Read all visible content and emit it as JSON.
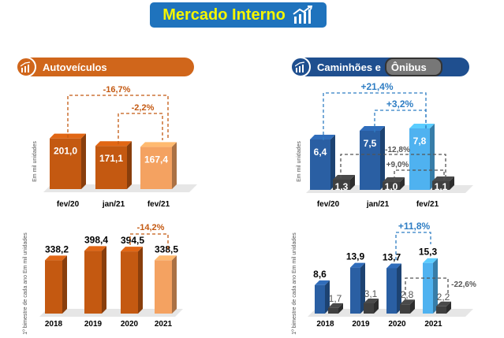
{
  "header": {
    "title": "Mercado Interno"
  },
  "panels": {
    "autoveiculos": {
      "title": "Autoveículos"
    },
    "caminhoes": {
      "title_part1": "Caminhões e",
      "title_part2": "Ônibus"
    }
  },
  "colors": {
    "orange_dark": "#c45911",
    "orange_light": "#f4a261",
    "blue_dark": "#2a5fa3",
    "blue_light": "#4fb2f0",
    "gray": "#404040",
    "pill_orange": "#d0661b",
    "pill_blue": "#1f4f8f"
  },
  "chart_data": [
    {
      "id": "auto_top",
      "type": "bar",
      "ylabel": "Em mil unidades",
      "categories": [
        "fev/20",
        "jan/21",
        "fev/21"
      ],
      "series": [
        {
          "values": [
            201.0,
            171.1,
            167.4
          ],
          "labels": [
            "201,0",
            "171,1",
            "167,4"
          ]
        }
      ],
      "annotations": [
        "-16,7%",
        "-2,2%"
      ]
    },
    {
      "id": "auto_bottom",
      "type": "bar",
      "ylabel": "1º bimestre de cada ano Em mil unidades",
      "categories": [
        "2018",
        "2019",
        "2020",
        "2021"
      ],
      "series": [
        {
          "values": [
            338.2,
            398.4,
            394.5,
            338.5
          ],
          "labels": [
            "338,2",
            "398,4",
            "394,5",
            "338,5"
          ]
        }
      ],
      "annotations": [
        "-14,2%"
      ]
    },
    {
      "id": "cam_top",
      "type": "bar",
      "ylabel": "Em mil unidades",
      "categories": [
        "fev/20",
        "jan/21",
        "fev/21"
      ],
      "series": [
        {
          "values": [
            6.4,
            7.5,
            7.8
          ],
          "labels": [
            "6,4",
            "7,5",
            "7,8"
          ]
        },
        {
          "values": [
            1.3,
            1.0,
            1.1
          ],
          "labels": [
            "1,3",
            "1,0",
            "1,1"
          ]
        }
      ],
      "annotations": [
        "+21,4%",
        "+3,2%",
        "-12,8%",
        "+9,0%"
      ]
    },
    {
      "id": "cam_bottom",
      "type": "bar",
      "ylabel": "1º bimestre de cada ano Em mil unidades",
      "categories": [
        "2018",
        "2019",
        "2020",
        "2021"
      ],
      "series": [
        {
          "values": [
            8.6,
            13.9,
            13.7,
            15.3
          ],
          "labels": [
            "8,6",
            "13,9",
            "13,7",
            "15,3"
          ]
        },
        {
          "values": [
            1.7,
            3.1,
            2.8,
            2.2
          ],
          "labels": [
            "1,7",
            "3,1",
            "2,8",
            "2,2"
          ]
        }
      ],
      "annotations": [
        "+11,8%",
        "-22,6%"
      ]
    }
  ]
}
